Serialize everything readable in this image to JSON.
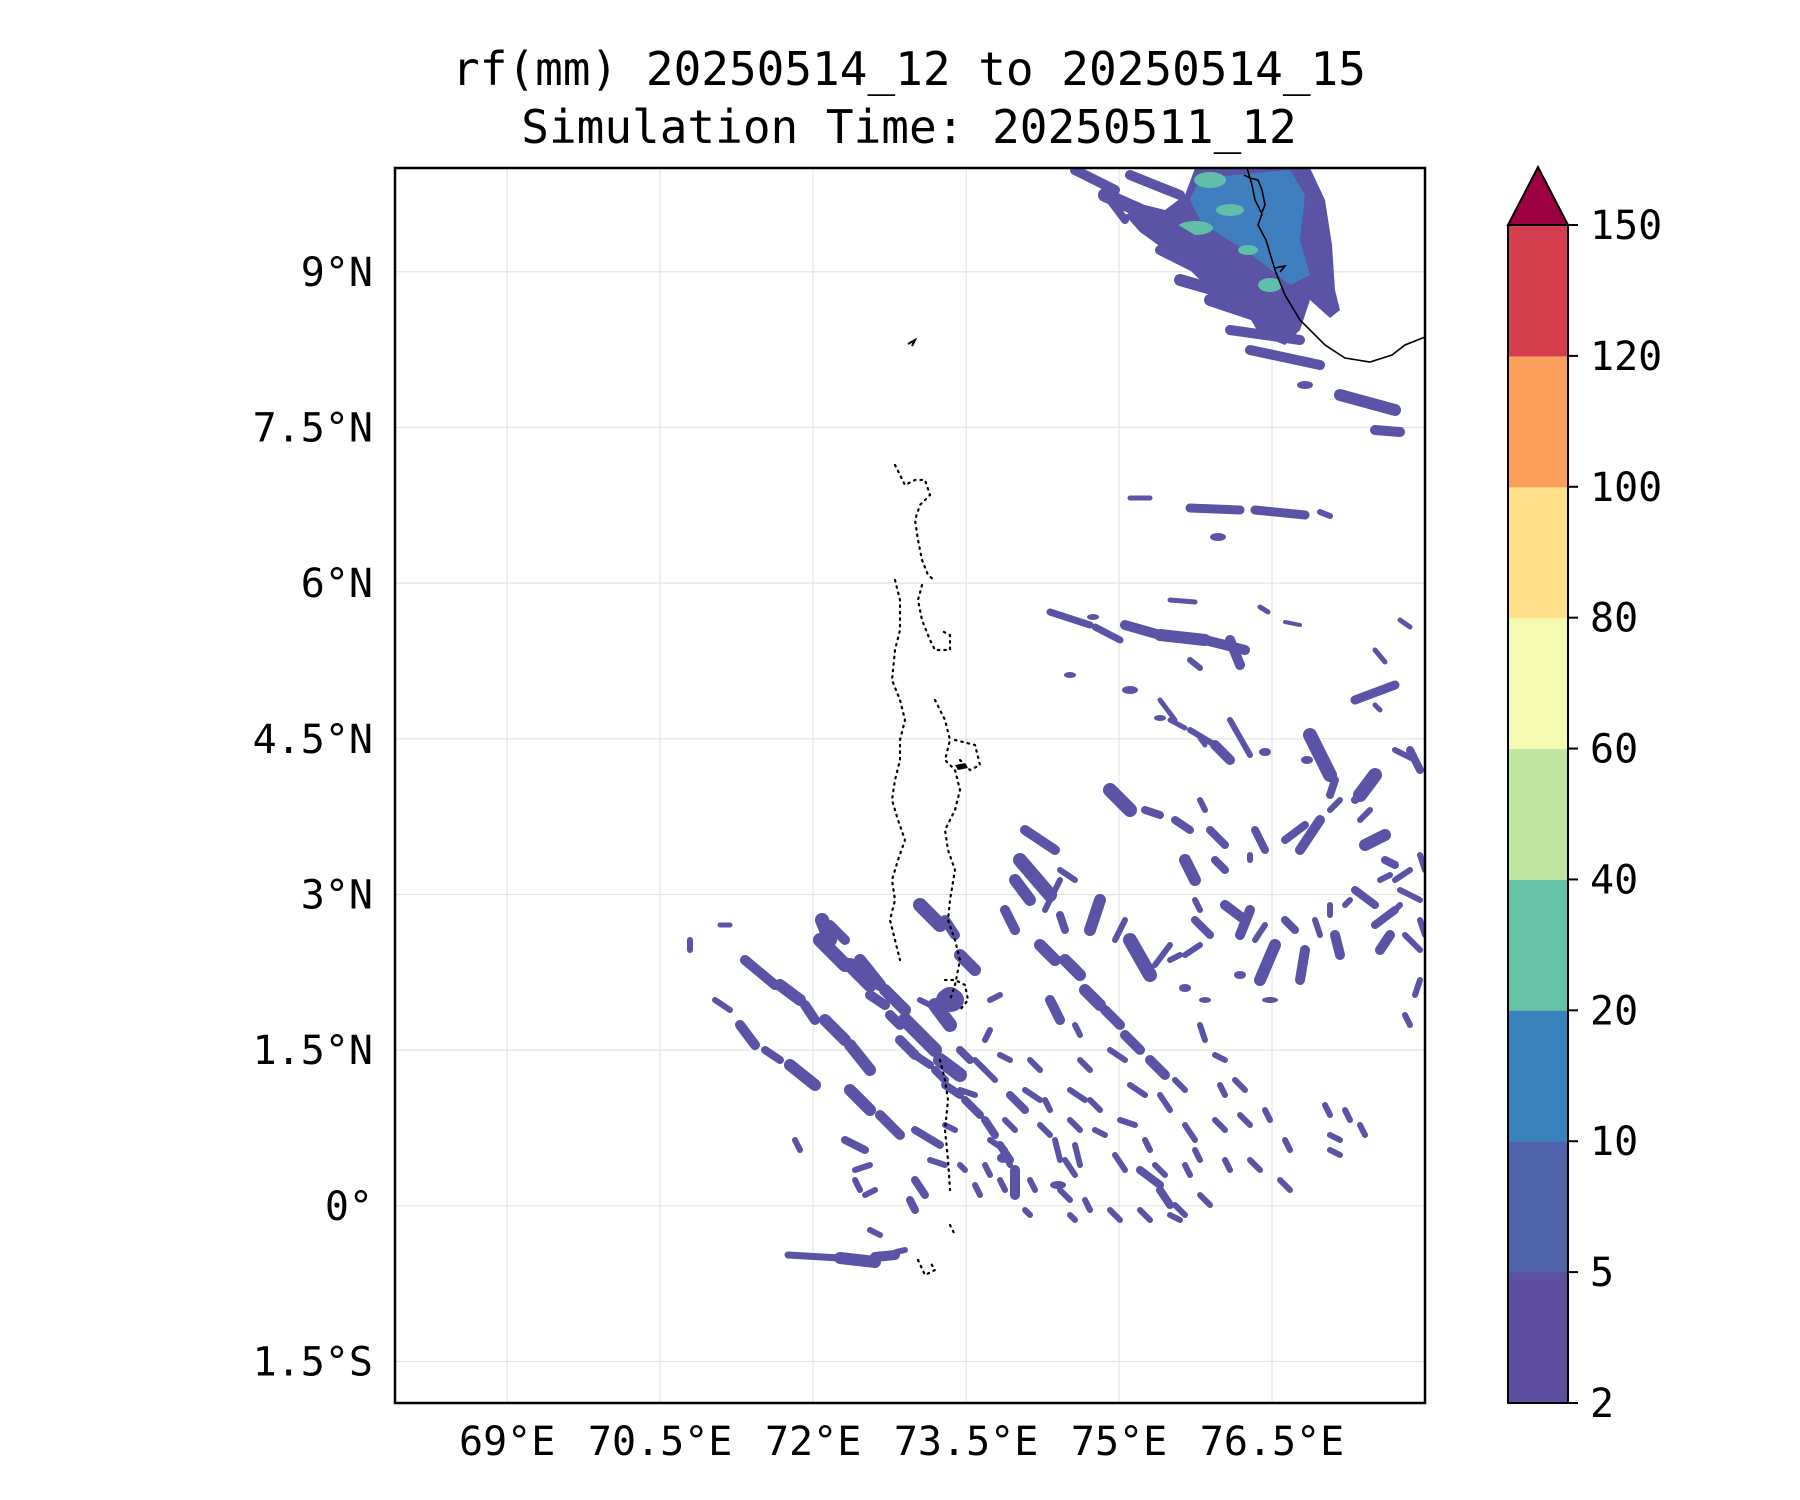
{
  "title": {
    "line1": "rf(mm) 20250514_12 to 20250514_15",
    "line2": "Simulation Time: 20250511_12"
  },
  "map": {
    "lon_range": [
      67.9,
      78.0
    ],
    "lat_range": [
      -1.9,
      10.0
    ],
    "lon_ticks": [
      {
        "value": 69,
        "label": "69°E"
      },
      {
        "value": 70.5,
        "label": "70.5°E"
      },
      {
        "value": 72,
        "label": "72°E"
      },
      {
        "value": 73.5,
        "label": "73.5°E"
      },
      {
        "value": 75,
        "label": "75°E"
      },
      {
        "value": 76.5,
        "label": "76.5°E"
      }
    ],
    "lat_ticks": [
      {
        "value": 9,
        "label": "9°N"
      },
      {
        "value": 7.5,
        "label": "7.5°N"
      },
      {
        "value": 6,
        "label": "6°N"
      },
      {
        "value": 4.5,
        "label": "4.5°N"
      },
      {
        "value": 3,
        "label": "3°N"
      },
      {
        "value": 1.5,
        "label": "1.5°N"
      },
      {
        "value": 0,
        "label": "0°"
      },
      {
        "value": -1.5,
        "label": "1.5°S"
      }
    ],
    "gridlines": true
  },
  "colorbar": {
    "levels": [
      "2",
      "5",
      "10",
      "20",
      "40",
      "60",
      "80",
      "100",
      "120",
      "150"
    ],
    "colors": [
      "#5e4fa2",
      "#4f62aa",
      "#3a82bb",
      "#66c2a5",
      "#bfe5a0",
      "#f4fbb0",
      "#fee08b",
      "#fba05b",
      "#d53e4f",
      "#9e0142"
    ],
    "extend": "max"
  },
  "rain_colors": {
    "light": "#5b53a6",
    "medium": "#3f7fbf",
    "heavy": "#5fbfa8"
  }
}
